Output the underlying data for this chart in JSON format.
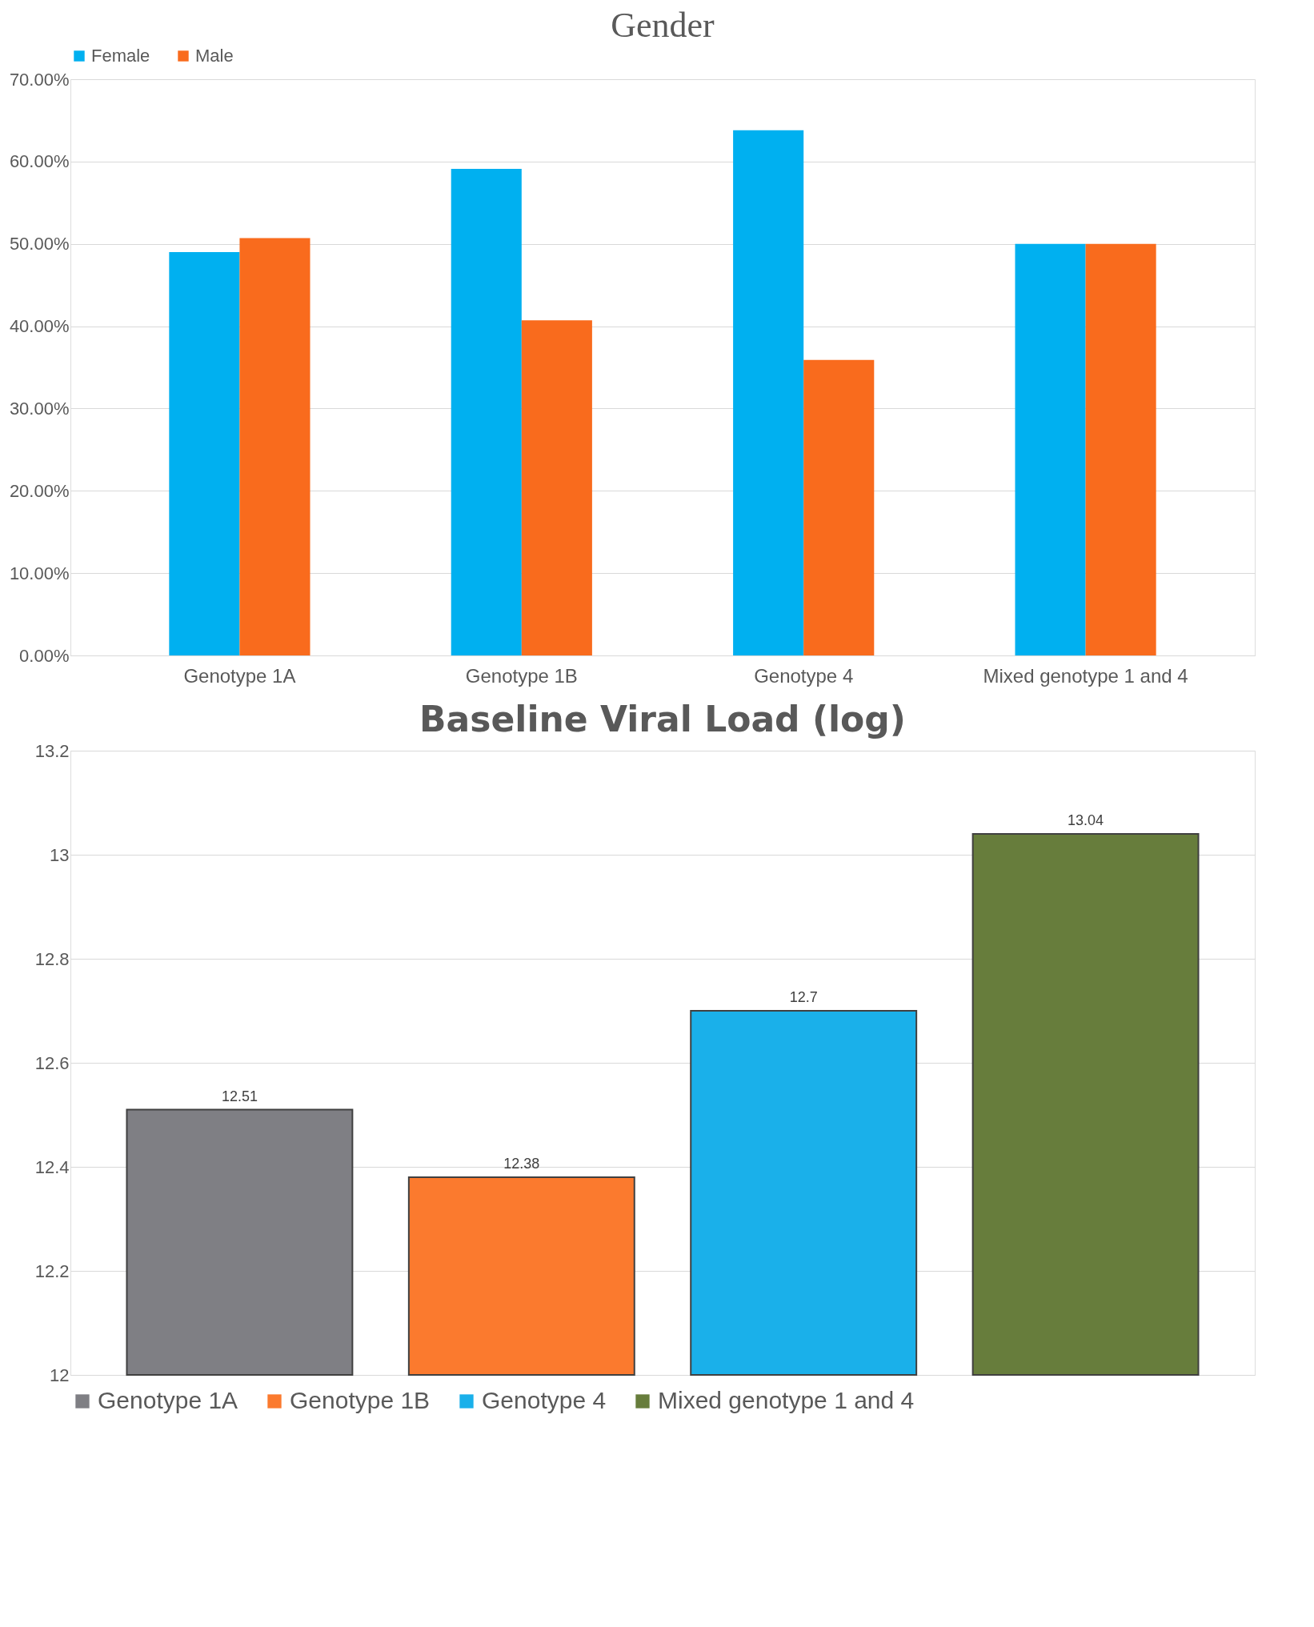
{
  "chart_data": [
    {
      "type": "bar",
      "title": "Gender",
      "categories": [
        "Genotype 1A",
        "Genotype 1B",
        "Genotype 4",
        "Mixed genotype 1 and 4"
      ],
      "series": [
        {
          "name": "Female",
          "color": "#00b0f0",
          "values": [
            49.0,
            59.1,
            63.8,
            50.0
          ]
        },
        {
          "name": "Male",
          "color": "#f96b1d",
          "values": [
            50.7,
            40.7,
            35.9,
            50.0
          ]
        }
      ],
      "ylim": [
        0,
        70
      ],
      "yticks": [
        {
          "value": 0,
          "label": "0.00%"
        },
        {
          "value": 10,
          "label": "10.00%"
        },
        {
          "value": 20,
          "label": "20.00%"
        },
        {
          "value": 30,
          "label": "30.00%"
        },
        {
          "value": 40,
          "label": "40.00%"
        },
        {
          "value": 50,
          "label": "50.00%"
        },
        {
          "value": 60,
          "label": "60.00%"
        },
        {
          "value": 70,
          "label": "70.00%"
        }
      ],
      "grid": "y",
      "legend": "top"
    },
    {
      "type": "bar",
      "title": "Baseline Viral Load (log)",
      "categories": [
        null,
        null,
        null,
        null
      ],
      "series": [
        {
          "name": "Genotype 1A",
          "color": "#7f7f84",
          "values": [
            12.51,
            null,
            null,
            null
          ]
        },
        {
          "name": "Genotype 1B",
          "color": "#fb7a2e",
          "values": [
            null,
            12.38,
            null,
            null
          ]
        },
        {
          "name": "Genotype 4",
          "color": "#1ab0ea",
          "values": [
            null,
            null,
            12.7,
            null
          ]
        },
        {
          "name": "Mixed genotype 1 and 4",
          "color": "#677d3c",
          "values": [
            null,
            null,
            null,
            13.04
          ]
        }
      ],
      "ylim": [
        12,
        13.2
      ],
      "yticks": [
        12,
        12.2,
        12.4,
        12.6,
        12.8,
        13,
        13.2
      ],
      "grid": "y",
      "legend": "bottom",
      "data_labels": true,
      "tick_labels": "y"
    }
  ]
}
